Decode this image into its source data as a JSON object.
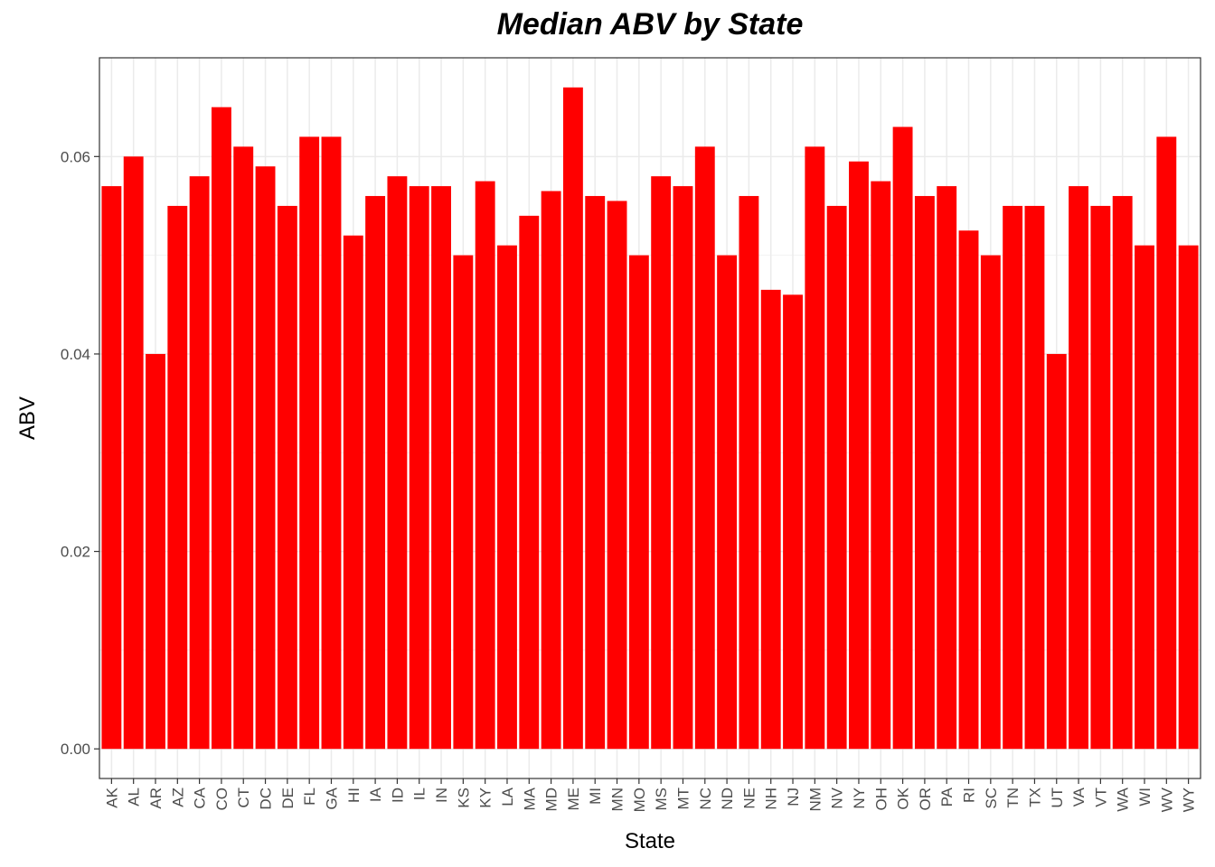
{
  "chart_data": {
    "type": "bar",
    "title": "Median ABV by State",
    "xlabel": "State",
    "ylabel": "ABV",
    "ylim": [
      -0.003,
      0.07
    ],
    "yticks": [
      "0.00",
      "0.02",
      "0.04",
      "0.06"
    ],
    "ytick_values": [
      0.0,
      0.02,
      0.04,
      0.06
    ],
    "grid": true,
    "bar_color": "#ff0000",
    "categories": [
      "AK",
      "AL",
      "AR",
      "AZ",
      "CA",
      "CO",
      "CT",
      "DC",
      "DE",
      "FL",
      "GA",
      "HI",
      "IA",
      "ID",
      "IL",
      "IN",
      "KS",
      "KY",
      "LA",
      "MA",
      "MD",
      "ME",
      "MI",
      "MN",
      "MO",
      "MS",
      "MT",
      "NC",
      "ND",
      "NE",
      "NH",
      "NJ",
      "NM",
      "NV",
      "NY",
      "OH",
      "OK",
      "OR",
      "PA",
      "RI",
      "SC",
      "TN",
      "TX",
      "UT",
      "VA",
      "VT",
      "WA",
      "WI",
      "WV",
      "WY"
    ],
    "values": [
      0.057,
      0.06,
      0.04,
      0.055,
      0.058,
      0.065,
      0.061,
      0.059,
      0.055,
      0.062,
      0.062,
      0.052,
      0.056,
      0.058,
      0.057,
      0.057,
      0.05,
      0.0575,
      0.051,
      0.054,
      0.0565,
      0.067,
      0.056,
      0.0555,
      0.05,
      0.058,
      0.057,
      0.061,
      0.05,
      0.056,
      0.0465,
      0.046,
      0.061,
      0.055,
      0.0595,
      0.0575,
      0.063,
      0.056,
      0.057,
      0.0525,
      0.05,
      0.055,
      0.055,
      0.04,
      0.057,
      0.055,
      0.056,
      0.051,
      0.062,
      0.051
    ]
  }
}
